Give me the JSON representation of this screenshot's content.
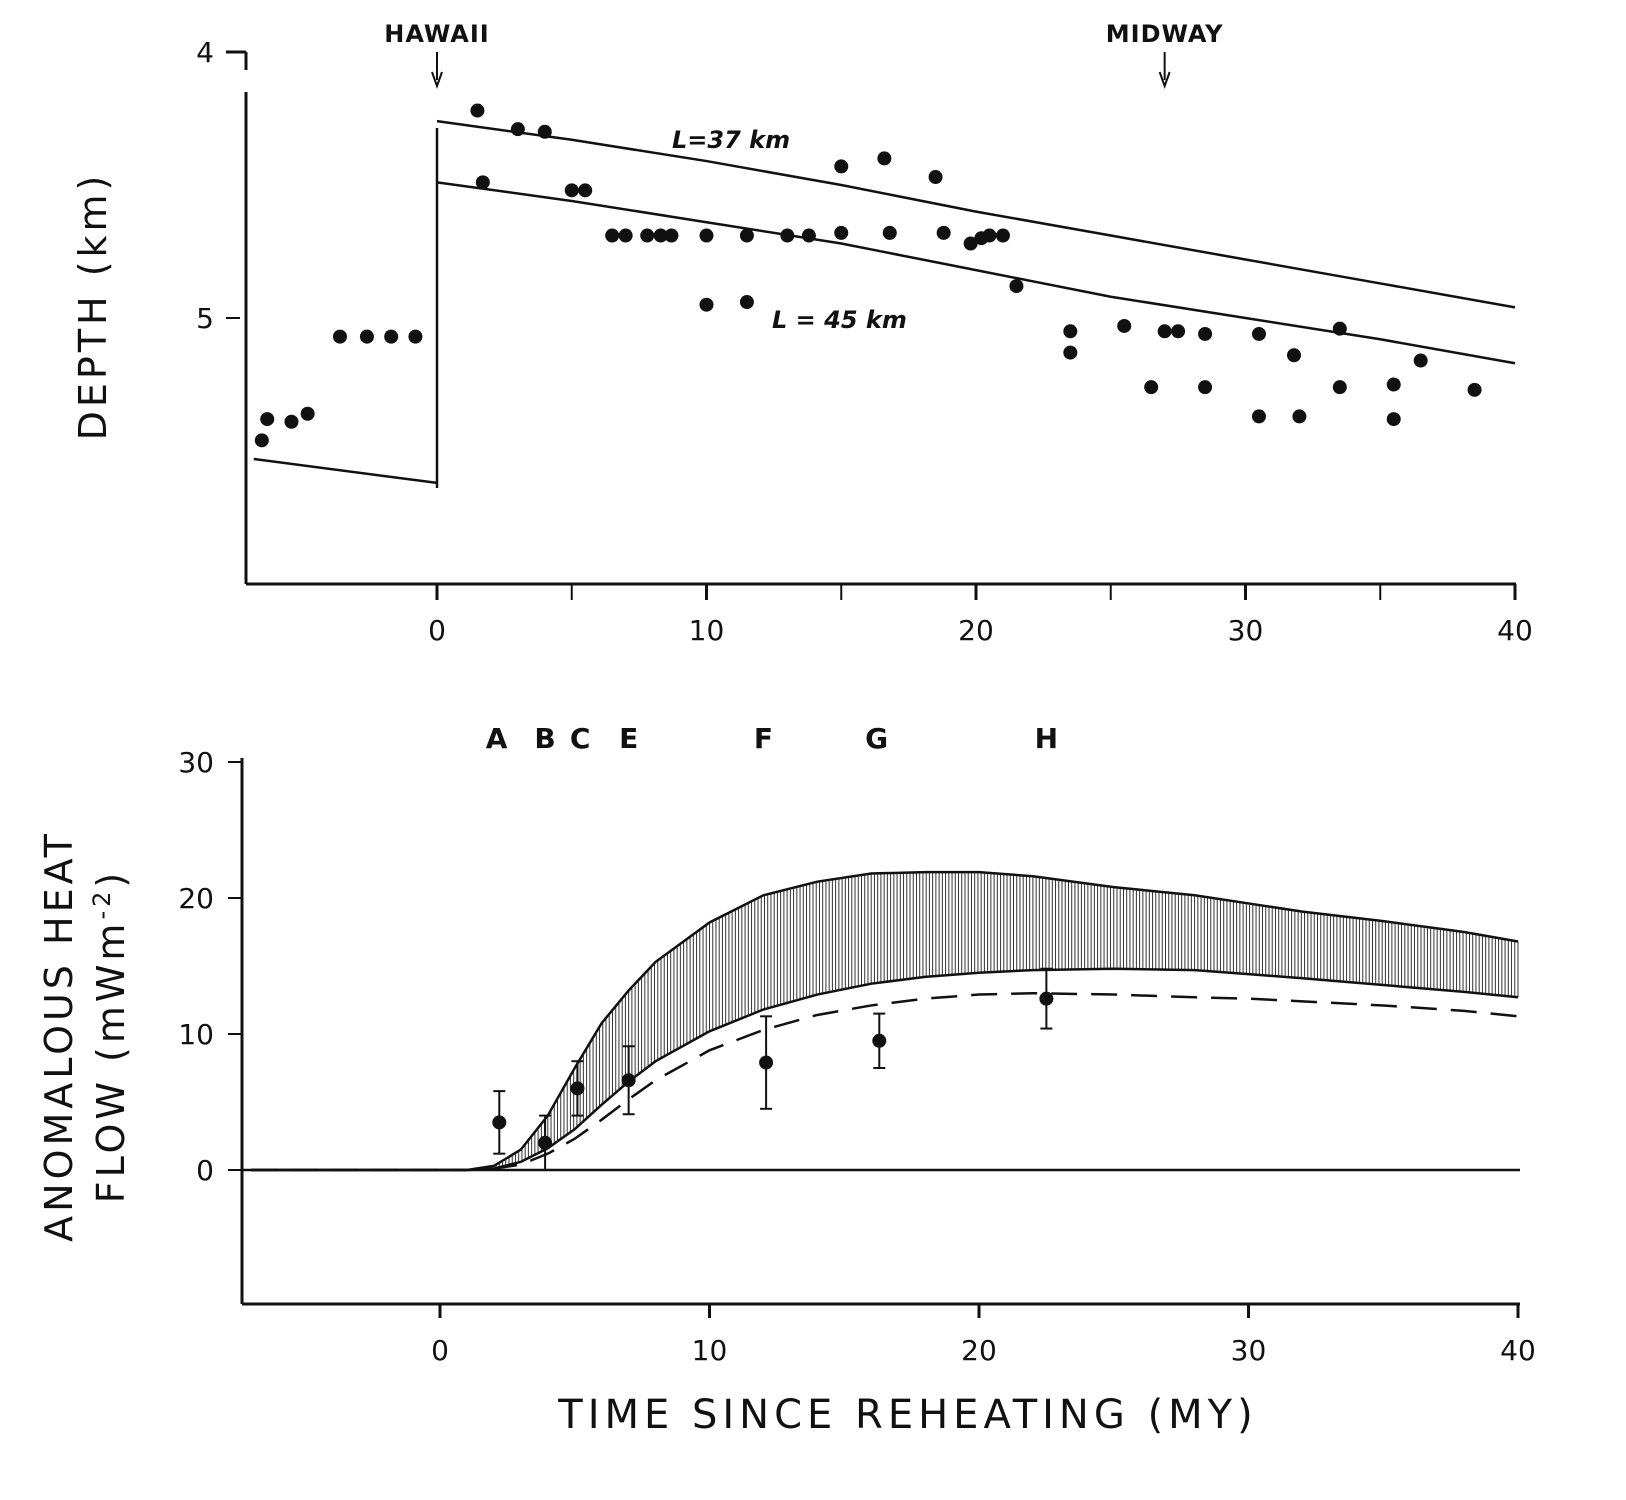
{
  "chart_data": [
    {
      "type": "scatter",
      "ylabel": "DEPTH (km)",
      "xlabel": "",
      "xlim": [
        -7,
        40
      ],
      "ylim": [
        5.95,
        3.95
      ],
      "y_inverted": true,
      "xticks": [
        0,
        10,
        20,
        30,
        40
      ],
      "yticks": [
        4,
        5
      ],
      "annotations": [
        {
          "text": "HAWAII",
          "x": 0
        },
        {
          "text": "MIDWAY",
          "x": 27
        }
      ],
      "series": [
        {
          "name": "L=37 km",
          "x": [
            0,
            5,
            10,
            15,
            20,
            25,
            30,
            35,
            40
          ],
          "y": [
            4.26,
            4.33,
            4.41,
            4.5,
            4.6,
            4.69,
            4.78,
            4.87,
            4.96
          ]
        },
        {
          "name": "L = 45 km",
          "x": [
            0,
            5,
            10,
            15,
            20,
            25,
            30,
            35,
            40
          ],
          "y": [
            4.49,
            4.56,
            4.64,
            4.72,
            4.82,
            4.92,
            5.0,
            5.08,
            5.17
          ]
        },
        {
          "x": [
            -6.8,
            0
          ],
          "y": [
            5.53,
            5.62
          ]
        },
        {
          "x": [
            -6.5,
            -6.3,
            -5.4,
            -4.8,
            -3.6,
            -2.6,
            -1.7,
            -0.8,
            1.5,
            1.7,
            3.0,
            4.0,
            5.0,
            5.5,
            6.5,
            7.0,
            7.8,
            8.3,
            8.7,
            10.0,
            10.0,
            11.5,
            11.5,
            13.0,
            13.8,
            15.0,
            15.0,
            16.6,
            16.8,
            18.5,
            18.8,
            19.8,
            20.2,
            20.5,
            21.0,
            21.5,
            23.5,
            23.5,
            25.5,
            26.5,
            27.0,
            27.5,
            28.5,
            28.5,
            30.5,
            30.5,
            31.8,
            32.0,
            33.5,
            33.5,
            35.5,
            35.5,
            36.5,
            38.5
          ],
          "y": [
            5.46,
            5.38,
            5.39,
            5.36,
            5.07,
            5.07,
            5.07,
            5.07,
            4.22,
            4.49,
            4.29,
            4.3,
            4.52,
            4.52,
            4.69,
            4.69,
            4.69,
            4.69,
            4.69,
            4.69,
            4.95,
            4.69,
            4.94,
            4.69,
            4.69,
            4.43,
            4.68,
            4.4,
            4.68,
            4.47,
            4.68,
            4.72,
            4.7,
            4.69,
            4.69,
            4.88,
            5.05,
            5.13,
            5.03,
            5.26,
            5.05,
            5.05,
            5.06,
            5.26,
            5.06,
            5.37,
            5.14,
            5.37,
            5.04,
            5.26,
            5.25,
            5.38,
            5.16,
            5.27
          ]
        }
      ]
    },
    {
      "type": "line",
      "xlabel": "TIME SINCE REHEATING (MY)",
      "ylabel_line1": "ANOMALOUS HEAT",
      "ylabel_line2": "FLOW (mWm",
      "ylabel_sup": "-2",
      "ylabel_close": ")",
      "xlim": [
        -7,
        40
      ],
      "ylim": [
        -9.5,
        30
      ],
      "xticks": [
        0,
        10,
        20,
        30,
        40
      ],
      "yticks": [
        0,
        10,
        20,
        30
      ],
      "segment_labels": [
        {
          "text": "A",
          "x": 2.1
        },
        {
          "text": "B",
          "x": 3.9
        },
        {
          "text": "C",
          "x": 5.2
        },
        {
          "text": "E",
          "x": 7.0
        },
        {
          "text": "F",
          "x": 12.0
        },
        {
          "text": "G",
          "x": 16.2
        },
        {
          "text": "H",
          "x": 22.5
        }
      ],
      "x": [
        1,
        2,
        3,
        4,
        5,
        6,
        7,
        8,
        10,
        12,
        14,
        16,
        18,
        20,
        22,
        25,
        28,
        30,
        32,
        35,
        38,
        40
      ],
      "series": [
        {
          "values": [
            0,
            0.3,
            1.5,
            4.0,
            7.5,
            10.8,
            13.2,
            15.3,
            18.2,
            20.2,
            21.2,
            21.8,
            21.9,
            21.9,
            21.6,
            20.8,
            20.2,
            19.6,
            19.0,
            18.3,
            17.5,
            16.8
          ]
        },
        {
          "values": [
            0,
            0.1,
            0.6,
            1.6,
            3.0,
            4.8,
            6.5,
            8.0,
            10.2,
            11.8,
            12.9,
            13.7,
            14.2,
            14.5,
            14.7,
            14.8,
            14.7,
            14.4,
            14.1,
            13.6,
            13.1,
            12.7
          ]
        },
        {
          "values": [
            0,
            0.1,
            0.4,
            1.2,
            2.3,
            3.7,
            5.2,
            6.6,
            8.8,
            10.3,
            11.4,
            12.1,
            12.6,
            12.9,
            13.0,
            12.9,
            12.7,
            12.6,
            12.4,
            12.1,
            11.7,
            11.3
          ]
        }
      ],
      "points": {
        "x": [
          2.2,
          3.9,
          5.1,
          7.0,
          12.1,
          16.3,
          22.5
        ],
        "y": [
          3.5,
          2.0,
          6.0,
          6.6,
          7.9,
          9.5,
          12.6
        ],
        "yerr": [
          2.3,
          2.0,
          2.0,
          2.5,
          3.4,
          2.0,
          2.2
        ]
      }
    }
  ]
}
